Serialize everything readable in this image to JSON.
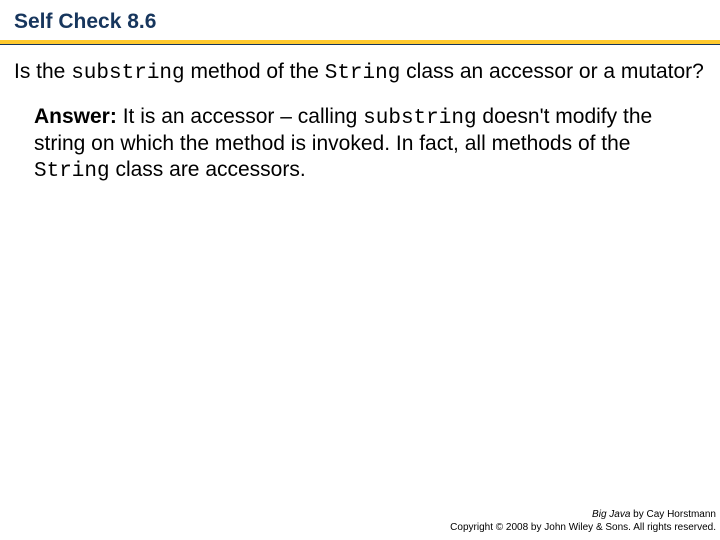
{
  "header": {
    "title": "Self Check 8.6",
    "rule_top_color": "#fec92e",
    "rule_bottom_color": "#17365d",
    "title_color": "#17365d"
  },
  "question": {
    "p1a": "Is the ",
    "code1": "substring",
    "p1b": " method of the ",
    "code2": "String",
    "p1c": " class an accessor or a mutator?"
  },
  "answer": {
    "label": "Answer:",
    "p1a": " It is an accessor – calling ",
    "code1": "substring",
    "p1b": " doesn't modify the string on which the method is invoked. In fact, all methods of the ",
    "code2": "String",
    "p1c": " class are accessors."
  },
  "footer": {
    "book": "Big Java",
    "byline": " by Cay Horstmann",
    "copyright": "Copyright © 2008 by John Wiley & Sons.  All rights reserved."
  }
}
